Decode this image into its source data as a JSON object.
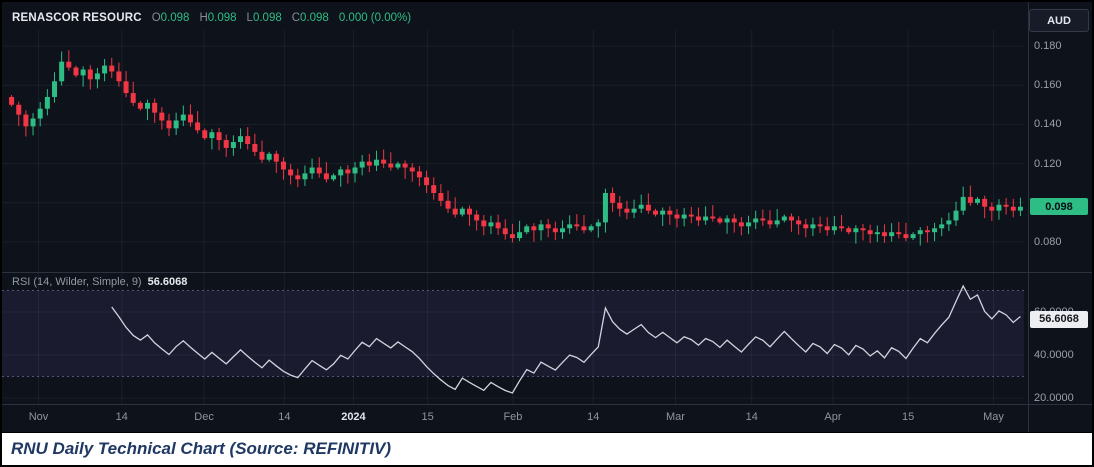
{
  "window": {
    "currency_button": "AUD"
  },
  "legend": {
    "symbol": "RENASCOR RESOURC",
    "ohlc": [
      {
        "key": "O",
        "value": "0.098"
      },
      {
        "key": "H",
        "value": "0.098"
      },
      {
        "key": "L",
        "value": "0.098"
      },
      {
        "key": "C",
        "value": "0.098"
      }
    ],
    "change": "0.000 (0.00%)"
  },
  "rsi_legend": {
    "label": "RSI (14, Wilder, Simple, 9)",
    "value": "56.6068"
  },
  "price_axis": {
    "ticks": [
      {
        "label": "0.180",
        "value": 0.18
      },
      {
        "label": "0.160",
        "value": 0.16
      },
      {
        "label": "0.140",
        "value": 0.14
      },
      {
        "label": "0.120",
        "value": 0.12
      },
      {
        "label": "0.080",
        "value": 0.08
      }
    ],
    "last_price_label": "0.098",
    "last_price": 0.098
  },
  "rsi_axis": {
    "ticks": [
      {
        "label": "60.0000",
        "value": 60
      },
      {
        "label": "40.0000",
        "value": 40
      },
      {
        "label": "20.0000",
        "value": 20
      }
    ],
    "current_label": "56.6068",
    "current": 56.6068
  },
  "time_axis": {
    "labels": [
      {
        "label": "Nov",
        "x": 0.03
      },
      {
        "label": "14",
        "x": 0.112
      },
      {
        "label": "Dec",
        "x": 0.193
      },
      {
        "label": "14",
        "x": 0.272
      },
      {
        "label": "2024",
        "x": 0.34,
        "emph": true
      },
      {
        "label": "15",
        "x": 0.413
      },
      {
        "label": "Feb",
        "x": 0.497
      },
      {
        "label": "14",
        "x": 0.576
      },
      {
        "label": "Mar",
        "x": 0.657
      },
      {
        "label": "14",
        "x": 0.732
      },
      {
        "label": "Apr",
        "x": 0.812
      },
      {
        "label": "15",
        "x": 0.886
      },
      {
        "label": "May",
        "x": 0.97
      }
    ]
  },
  "colors": {
    "up": "#2ebd85",
    "down": "#f23645",
    "rsi_line": "#d1d4dc",
    "band_fill": "rgba(136,106,234,0.10)",
    "band_line": "rgba(170,160,220,0.45)",
    "grid": "rgba(255,255,255,0.055)",
    "separator": "#2c3240",
    "axis_text": "#9aa0ab",
    "badge_price_bg": "#2ebd85",
    "badge_rsi_bg": "#eceef2"
  },
  "caption": {
    "text": "RNU Daily Technical Chart (Source: REFINITIV)"
  },
  "chart_data": [
    {
      "type": "candlestick",
      "title": "RENASCOR RESOURC daily price (AUD)",
      "currency": "AUD",
      "ohlc_readout": {
        "open": 0.098,
        "high": 0.098,
        "low": 0.098,
        "close": 0.098,
        "change": 0.0,
        "change_pct": "0.00%"
      },
      "last_price": 0.098,
      "ylim": [
        0.074,
        0.186
      ],
      "grid_values": [
        0.18,
        0.16,
        0.14,
        0.12,
        0.1,
        0.08
      ],
      "x_range": [
        "Nov",
        "May"
      ],
      "closes": [
        0.15,
        0.145,
        0.139,
        0.143,
        0.148,
        0.154,
        0.162,
        0.172,
        0.169,
        0.165,
        0.168,
        0.163,
        0.166,
        0.17,
        0.167,
        0.162,
        0.156,
        0.151,
        0.148,
        0.151,
        0.146,
        0.142,
        0.138,
        0.142,
        0.145,
        0.141,
        0.137,
        0.133,
        0.136,
        0.132,
        0.128,
        0.131,
        0.134,
        0.13,
        0.126,
        0.122,
        0.125,
        0.121,
        0.117,
        0.114,
        0.112,
        0.115,
        0.118,
        0.115,
        0.112,
        0.114,
        0.117,
        0.115,
        0.118,
        0.121,
        0.119,
        0.122,
        0.12,
        0.118,
        0.12,
        0.118,
        0.116,
        0.113,
        0.109,
        0.105,
        0.101,
        0.097,
        0.094,
        0.097,
        0.094,
        0.091,
        0.088,
        0.09,
        0.087,
        0.084,
        0.082,
        0.085,
        0.088,
        0.086,
        0.089,
        0.087,
        0.085,
        0.087,
        0.089,
        0.088,
        0.086,
        0.088,
        0.09,
        0.105,
        0.1,
        0.097,
        0.095,
        0.097,
        0.099,
        0.096,
        0.094,
        0.096,
        0.094,
        0.092,
        0.094,
        0.093,
        0.091,
        0.093,
        0.092,
        0.09,
        0.092,
        0.09,
        0.088,
        0.09,
        0.092,
        0.091,
        0.089,
        0.091,
        0.093,
        0.091,
        0.089,
        0.087,
        0.089,
        0.088,
        0.086,
        0.088,
        0.087,
        0.085,
        0.087,
        0.086,
        0.084,
        0.085,
        0.083,
        0.085,
        0.084,
        0.082,
        0.084,
        0.086,
        0.085,
        0.087,
        0.089,
        0.091,
        0.096,
        0.103,
        0.1,
        0.102,
        0.098,
        0.096,
        0.099,
        0.098,
        0.096,
        0.098
      ]
    },
    {
      "type": "line",
      "name": "RSI (14, Wilder, Simple, 9)",
      "method": "Wilder",
      "period": 14,
      "current": 56.6068,
      "bands": [
        70,
        30
      ],
      "ylim": [
        15,
        80
      ],
      "derived_from": "closes"
    }
  ]
}
